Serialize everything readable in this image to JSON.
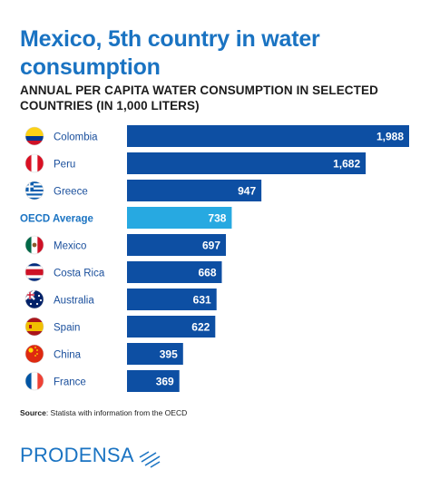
{
  "header": {
    "title": "Mexico, 5th country in water consumption",
    "subtitle": "ANNUAL PER CAPITA WATER CONSUMPTION IN SELECTED COUNTRIES (IN 1,000 LITERS)"
  },
  "chart_data": {
    "type": "bar",
    "orientation": "horizontal",
    "title": "ANNUAL PER CAPITA WATER CONSUMPTION IN SELECTED COUNTRIES (IN 1,000 LITERS)",
    "categories": [
      "Colombia",
      "Peru",
      "Greece",
      "OECD Average",
      "Mexico",
      "Costa Rica",
      "Australia",
      "Spain",
      "China",
      "France"
    ],
    "values": [
      1988,
      1682,
      947,
      738,
      697,
      668,
      631,
      622,
      395,
      369
    ],
    "value_labels": [
      "1,988",
      "1,682",
      "947",
      "738",
      "697",
      "668",
      "631",
      "622",
      "395",
      "369"
    ],
    "highlight": "OECD Average",
    "xlim": [
      0,
      1988
    ],
    "grid": false,
    "legend": "none",
    "flags": [
      "colombia-flag-icon",
      "peru-flag-icon",
      "greece-flag-icon",
      "",
      "mexico-flag-icon",
      "costa-rica-flag-icon",
      "australia-flag-icon",
      "spain-flag-icon",
      "china-flag-icon",
      "france-flag-icon"
    ],
    "colors": {
      "bar": "#0d4fa3",
      "highlight": "#27a9e1",
      "highlight_label": "#1a73c2",
      "label": "#1a4f9c"
    }
  },
  "footer": {
    "source_label": "Source",
    "source_text": ": Statista with information from the OECD",
    "logo": "PRODENSA"
  }
}
